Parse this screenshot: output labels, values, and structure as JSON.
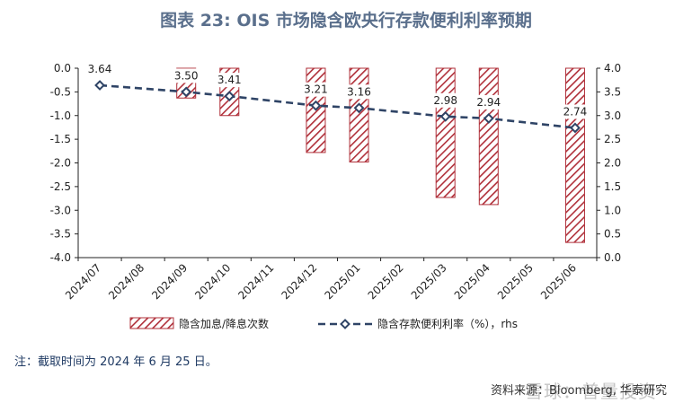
{
  "title": "图表 23: OIS 市场隐含欧央行存款便利利率预期",
  "note": "注：截取时间为 2024 年 6 月 25 日。",
  "source": "资料来源：Bloomberg, 华泰研究",
  "watermark": "雪球：普量投资",
  "colors": {
    "bar_stroke": "#b0303a",
    "bar_hatch": "#b0303a",
    "line": "#2f4466",
    "marker_fill": "#ffffff"
  },
  "chart_data": {
    "type": "bar",
    "categories": [
      "2024/07",
      "2024/08",
      "2024/09",
      "2024/10",
      "2024/11",
      "2024/12",
      "2025/01",
      "2025/02",
      "2025/03",
      "2025/04",
      "2025/05",
      "2025/06"
    ],
    "series": [
      {
        "name": "隐含加息/降息次数",
        "type": "bar",
        "axis": "left",
        "values": [
          null,
          null,
          -0.63,
          -1.0,
          null,
          -1.78,
          -1.98,
          null,
          -2.73,
          -2.88,
          null,
          -3.68
        ]
      },
      {
        "name": "隐含存款便利利率（%），rhs",
        "type": "line",
        "axis": "right",
        "style": "dashed-with-diamond-markers",
        "values": [
          3.64,
          null,
          3.5,
          3.41,
          null,
          3.21,
          3.16,
          null,
          2.98,
          2.94,
          null,
          2.74
        ],
        "data_labels": [
          "3.64",
          "",
          "3.50",
          "3.41",
          "",
          "3.21",
          "3.16",
          "",
          "2.98",
          "2.94",
          "",
          "2.74"
        ]
      }
    ],
    "y_left": {
      "lim": [
        -4.0,
        0.0
      ],
      "ticks": [
        "0.0",
        "-0.5",
        "-1.0",
        "-1.5",
        "-2.0",
        "-2.5",
        "-3.0",
        "-3.5",
        "-4.0"
      ]
    },
    "y_right": {
      "lim": [
        0.0,
        4.0
      ],
      "ticks": [
        "4.0",
        "3.5",
        "3.0",
        "2.5",
        "2.0",
        "1.5",
        "1.0",
        "0.5",
        "0.0"
      ]
    },
    "legend": {
      "position": "bottom",
      "entries": [
        "隐含加息/降息次数",
        "隐含存款便利利率（%），rhs"
      ]
    },
    "grid": false
  }
}
